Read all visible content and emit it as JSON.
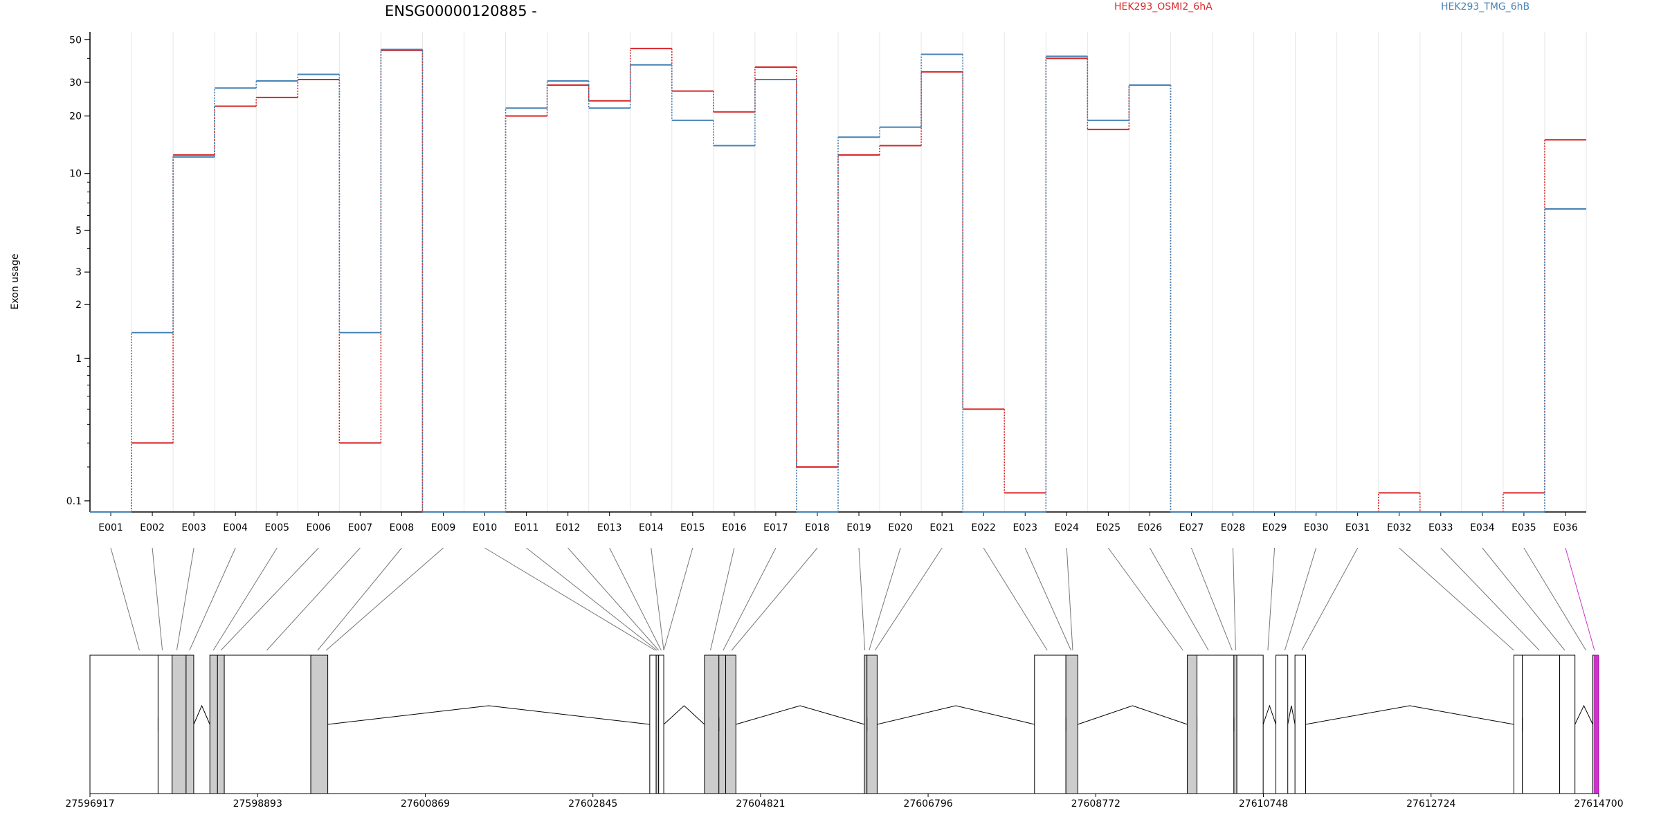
{
  "chart_data": {
    "type": "line",
    "title": "ENSG00000120885 -",
    "xlabel": "",
    "ylabel": "Exon usage",
    "y_scale": "log(y+0.1)",
    "y_ticks": [
      0.1,
      1,
      2,
      3,
      5,
      10,
      20,
      30,
      50
    ],
    "y_tick_labels": [
      "0.1",
      "1",
      "2",
      "3",
      "5",
      "10",
      "20",
      "30",
      "50"
    ],
    "ylim": [
      0.075,
      55
    ],
    "grid": "vertical",
    "legend_position": "top",
    "categories": [
      "E001",
      "E002",
      "E003",
      "E004",
      "E005",
      "E006",
      "E007",
      "E008",
      "E009",
      "E010",
      "E011",
      "E012",
      "E013",
      "E014",
      "E015",
      "E016",
      "E017",
      "E018",
      "E019",
      "E020",
      "E021",
      "E022",
      "E023",
      "E024",
      "E025",
      "E026",
      "E027",
      "E028",
      "E029",
      "E030",
      "E031",
      "E032",
      "E033",
      "E034",
      "E035",
      "E036"
    ],
    "series": [
      {
        "name": "HEK293_OSMI2_6hA",
        "color": "#d62728",
        "values": [
          0.075,
          0.3,
          12.5,
          22.5,
          25,
          31,
          0.3,
          44,
          0.075,
          0.075,
          20,
          29,
          24,
          45,
          27,
          21,
          36,
          0.2,
          12.5,
          14,
          34,
          0.5,
          0.12,
          40,
          17,
          29,
          0.075,
          0.075,
          0.075,
          0.075,
          0.075,
          0.12,
          0.075,
          0.075,
          0.12,
          15
        ]
      },
      {
        "name": "HEK293_TMG_6hB",
        "color": "#4682b4",
        "values": [
          0.075,
          1.4,
          12.2,
          28,
          30.5,
          33,
          1.4,
          44.5,
          0.075,
          0.075,
          22,
          30.5,
          22,
          37,
          19,
          14,
          31,
          0.075,
          15.5,
          17.5,
          42,
          0.075,
          0.075,
          41,
          19,
          29,
          0.075,
          0.075,
          0.075,
          0.075,
          0.075,
          0.075,
          0.075,
          0.075,
          0.075,
          6.5
        ]
      }
    ],
    "genomic_coordinates": [
      "27596917",
      "27598893",
      "27600869",
      "27602845",
      "27604821",
      "27606796",
      "27608772",
      "27610748",
      "27612724",
      "27614700"
    ],
    "genomic_range": [
      27596917,
      27614700
    ],
    "highlight_exon": "E036",
    "highlight_color": "#cc33cc",
    "exon_box_fill": "#cccccc"
  }
}
